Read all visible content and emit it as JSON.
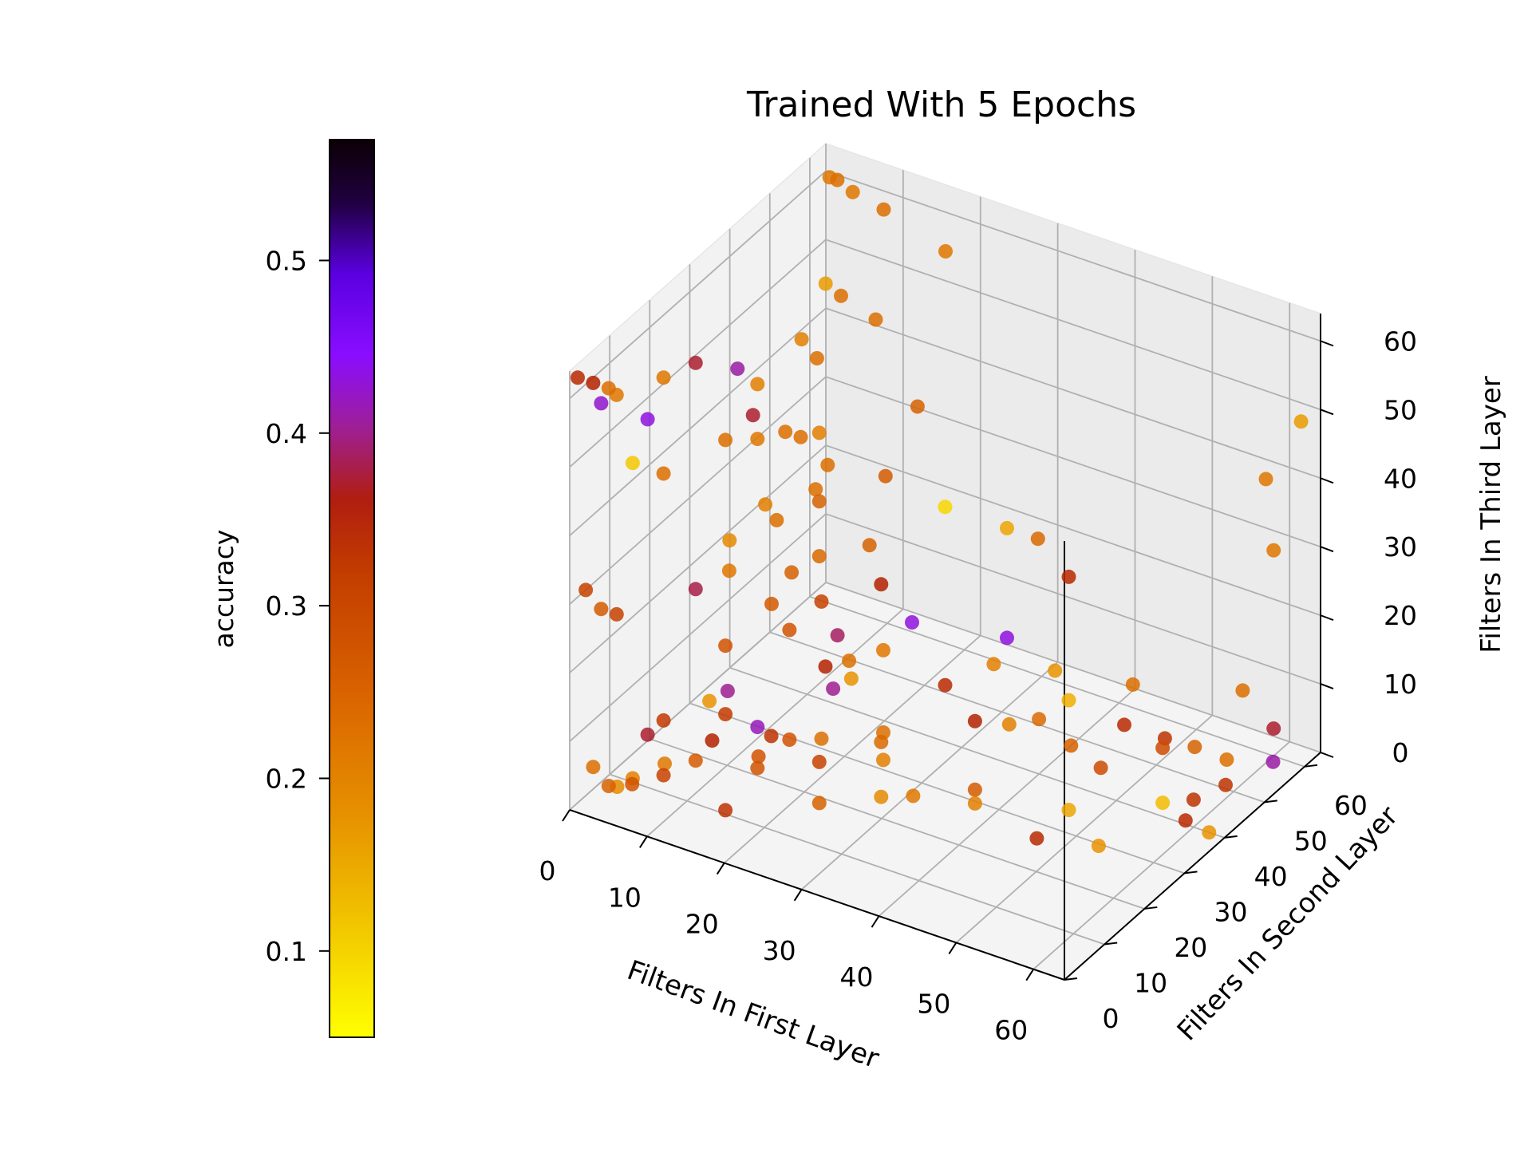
{
  "chart_data": {
    "type": "scatter3d",
    "title": "Trained With 5 Epochs",
    "xlabel": "Filters In First Layer",
    "ylabel": "Filters In Second Layer",
    "zlabel": "Filters In Third Layer",
    "xlim": [
      0,
      64
    ],
    "ylim": [
      0,
      64
    ],
    "zlim": [
      0,
      64
    ],
    "xticks": [
      "0",
      "10",
      "20",
      "30",
      "40",
      "50",
      "60"
    ],
    "yticks": [
      "0",
      "10",
      "20",
      "30",
      "40",
      "50",
      "60"
    ],
    "zticks": [
      "0",
      "10",
      "20",
      "30",
      "40",
      "50",
      "60"
    ],
    "grid": true,
    "colorbar": {
      "label": "accuracy",
      "min": 0.05,
      "max": 0.57,
      "ticks": [
        "0.1",
        "0.2",
        "0.3",
        "0.4",
        "0.5"
      ],
      "tick_values": [
        0.1,
        0.2,
        0.3,
        0.4,
        0.5
      ],
      "colormap": "gnuplot_r",
      "stops": [
        "#ffff00",
        "#f0b000",
        "#e07a00",
        "#d05000",
        "#b22000",
        "#9c1e8f",
        "#8a0dff",
        "#5500dd",
        "#1a0030",
        "#000000"
      ]
    },
    "points": [
      [
        1,
        63,
        60,
        0.17
      ],
      [
        2,
        63,
        60,
        0.18
      ],
      [
        4,
        63,
        59,
        0.17
      ],
      [
        8,
        63,
        58,
        0.18
      ],
      [
        16,
        63,
        55,
        0.17
      ],
      [
        62,
        63,
        48,
        0.13
      ],
      [
        1,
        62,
        45,
        0.13
      ],
      [
        3,
        62,
        44,
        0.18
      ],
      [
        8,
        61,
        43,
        0.18
      ],
      [
        16,
        56,
        36,
        0.2
      ],
      [
        59,
        60,
        40,
        0.17
      ],
      [
        60,
        60,
        30,
        0.17
      ],
      [
        1,
        56,
        40,
        0.16
      ],
      [
        3,
        56,
        38,
        0.18
      ],
      [
        2,
        50,
        30,
        0.18
      ],
      [
        4,
        50,
        30,
        0.18
      ],
      [
        8,
        49,
        28,
        0.18
      ],
      [
        8,
        46,
        26,
        0.18
      ],
      [
        16,
        48,
        30,
        0.21
      ],
      [
        16,
        44,
        22,
        0.2
      ],
      [
        2,
        45,
        22,
        0.16
      ],
      [
        4,
        44,
        21,
        0.18
      ],
      [
        1,
        40,
        44,
        0.35
      ],
      [
        3,
        40,
        38,
        0.3
      ],
      [
        1,
        38,
        20,
        0.15
      ],
      [
        2,
        36,
        17,
        0.17
      ],
      [
        8,
        40,
        17,
        0.2
      ],
      [
        8,
        35,
        15,
        0.21
      ],
      [
        16,
        36,
        13,
        0.32
      ],
      [
        16,
        33,
        10,
        0.28
      ],
      [
        30,
        48,
        8,
        0.16
      ],
      [
        40,
        44,
        13,
        0.14
      ],
      [
        48,
        48,
        12,
        0.18
      ],
      [
        50,
        42,
        10,
        0.27
      ],
      [
        60,
        40,
        4,
        0.26
      ],
      [
        60,
        38,
        2,
        0.27
      ],
      [
        0,
        2,
        62,
        0.27
      ],
      [
        2,
        2,
        62,
        0.28
      ],
      [
        4,
        2,
        62,
        0.18
      ],
      [
        4,
        4,
        60,
        0.17
      ],
      [
        8,
        8,
        62,
        0.17
      ],
      [
        2,
        4,
        58,
        0.37
      ],
      [
        8,
        4,
        58,
        0.38
      ],
      [
        16,
        8,
        56,
        0.18
      ],
      [
        4,
        8,
        48,
        0.09
      ],
      [
        8,
        8,
        48,
        0.18
      ],
      [
        16,
        16,
        52,
        0.17
      ],
      [
        24,
        16,
        56,
        0.16
      ],
      [
        8,
        16,
        60,
        0.3
      ],
      [
        16,
        16,
        60,
        0.16
      ],
      [
        24,
        16,
        46,
        0.2
      ],
      [
        24,
        16,
        38,
        0.19
      ],
      [
        32,
        16,
        37,
        0.28
      ],
      [
        36,
        16,
        33,
        0.38
      ],
      [
        32,
        32,
        40,
        0.08
      ],
      [
        40,
        32,
        40,
        0.12
      ],
      [
        44,
        32,
        40,
        0.19
      ],
      [
        48,
        32,
        36,
        0.27
      ],
      [
        32,
        8,
        30,
        0.18
      ],
      [
        32,
        4,
        28,
        0.34
      ],
      [
        16,
        8,
        26,
        0.22
      ],
      [
        8,
        16,
        27,
        0.31
      ],
      [
        0,
        4,
        30,
        0.24
      ],
      [
        2,
        4,
        28,
        0.21
      ],
      [
        4,
        4,
        28,
        0.24
      ],
      [
        16,
        24,
        20,
        0.22
      ],
      [
        24,
        24,
        16,
        0.14
      ],
      [
        16,
        32,
        20,
        0.24
      ],
      [
        24,
        32,
        16,
        0.17
      ],
      [
        32,
        32,
        14,
        0.27
      ],
      [
        32,
        16,
        14,
        0.19
      ],
      [
        40,
        24,
        16,
        0.28
      ],
      [
        40,
        32,
        24,
        0.38
      ],
      [
        48,
        32,
        18,
        0.11
      ],
      [
        56,
        40,
        10,
        0.23
      ],
      [
        56,
        48,
        6,
        0.2
      ],
      [
        8,
        8,
        12,
        0.25
      ],
      [
        16,
        8,
        16,
        0.25
      ],
      [
        16,
        4,
        20,
        0.14
      ],
      [
        24,
        4,
        18,
        0.26
      ],
      [
        8,
        4,
        12,
        0.3
      ],
      [
        16,
        16,
        10,
        0.36
      ],
      [
        24,
        16,
        8,
        0.24
      ],
      [
        32,
        16,
        6,
        0.15
      ],
      [
        40,
        24,
        6,
        0.21
      ],
      [
        48,
        24,
        2,
        0.27
      ],
      [
        56,
        24,
        4,
        0.14
      ],
      [
        2,
        2,
        6,
        0.18
      ],
      [
        4,
        2,
        4,
        0.2
      ],
      [
        6,
        4,
        4,
        0.22
      ],
      [
        8,
        8,
        4,
        0.24
      ],
      [
        16,
        8,
        2,
        0.26
      ],
      [
        16,
        16,
        4,
        0.22
      ],
      [
        24,
        16,
        2,
        0.2
      ],
      [
        32,
        24,
        2,
        0.17
      ],
      [
        40,
        24,
        4,
        0.16
      ],
      [
        48,
        32,
        2,
        0.12
      ],
      [
        56,
        40,
        2,
        0.1
      ],
      [
        62,
        40,
        0,
        0.14
      ],
      [
        60,
        48,
        2,
        0.26
      ],
      [
        48,
        40,
        4,
        0.23
      ],
      [
        40,
        40,
        8,
        0.19
      ],
      [
        8,
        24,
        8,
        0.34
      ],
      [
        16,
        24,
        4,
        0.22
      ],
      [
        24,
        32,
        4,
        0.18
      ],
      [
        4,
        8,
        2,
        0.16
      ],
      [
        8,
        16,
        2,
        0.21
      ],
      [
        2,
        8,
        0,
        0.15
      ],
      [
        4,
        16,
        0,
        0.17
      ],
      [
        6,
        24,
        0,
        0.28
      ],
      [
        12,
        24,
        0,
        0.22
      ],
      [
        16,
        32,
        0,
        0.18
      ],
      [
        24,
        32,
        0,
        0.16
      ],
      [
        32,
        48,
        0,
        0.16
      ],
      [
        40,
        48,
        0,
        0.2
      ],
      [
        48,
        56,
        0,
        0.26
      ],
      [
        56,
        56,
        0,
        0.18
      ],
      [
        62,
        56,
        2,
        0.35
      ],
      [
        60,
        60,
        4,
        0.3
      ],
      [
        56,
        60,
        8,
        0.18
      ]
    ]
  }
}
